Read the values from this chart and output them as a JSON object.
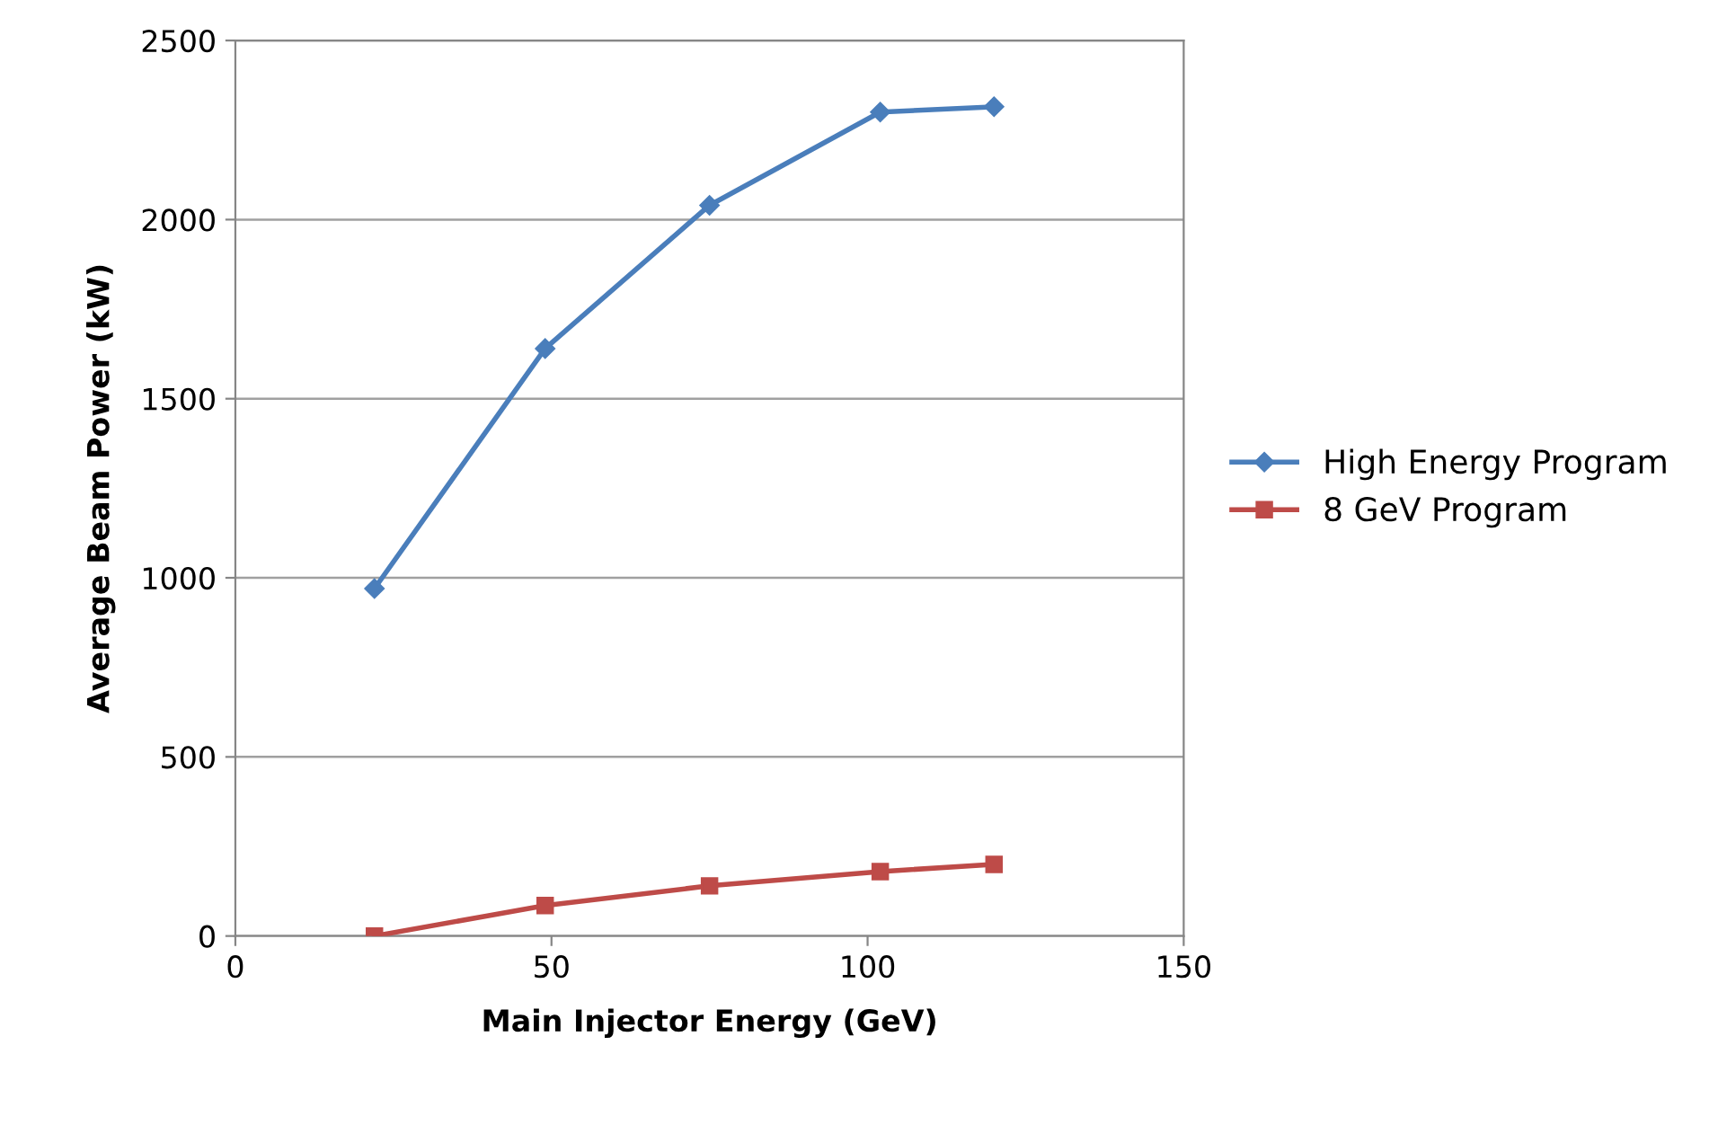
{
  "chart_data": {
    "type": "line",
    "xlabel": "Main Injector Energy (GeV)",
    "ylabel": "Average Beam Power (kW)",
    "xlim": [
      0,
      150
    ],
    "xticks": [
      0,
      50,
      100,
      150
    ],
    "ylim": [
      0,
      2500
    ],
    "yticks": [
      0,
      500,
      1000,
      1500,
      2000,
      2500
    ],
    "grid": "y",
    "legend": "right",
    "line_style": "solid",
    "series": [
      {
        "name": "High Energy Program",
        "color": "#4a7ebb",
        "marker": "diamond",
        "x": [
          22,
          49,
          75,
          102,
          120
        ],
        "values": [
          970,
          1640,
          2040,
          2300,
          2315
        ]
      },
      {
        "name": "8 GeV Program",
        "color": "#be4b48",
        "marker": "square",
        "x": [
          22,
          49,
          75,
          102,
          120
        ],
        "values": [
          0,
          85,
          140,
          180,
          200
        ]
      }
    ]
  }
}
